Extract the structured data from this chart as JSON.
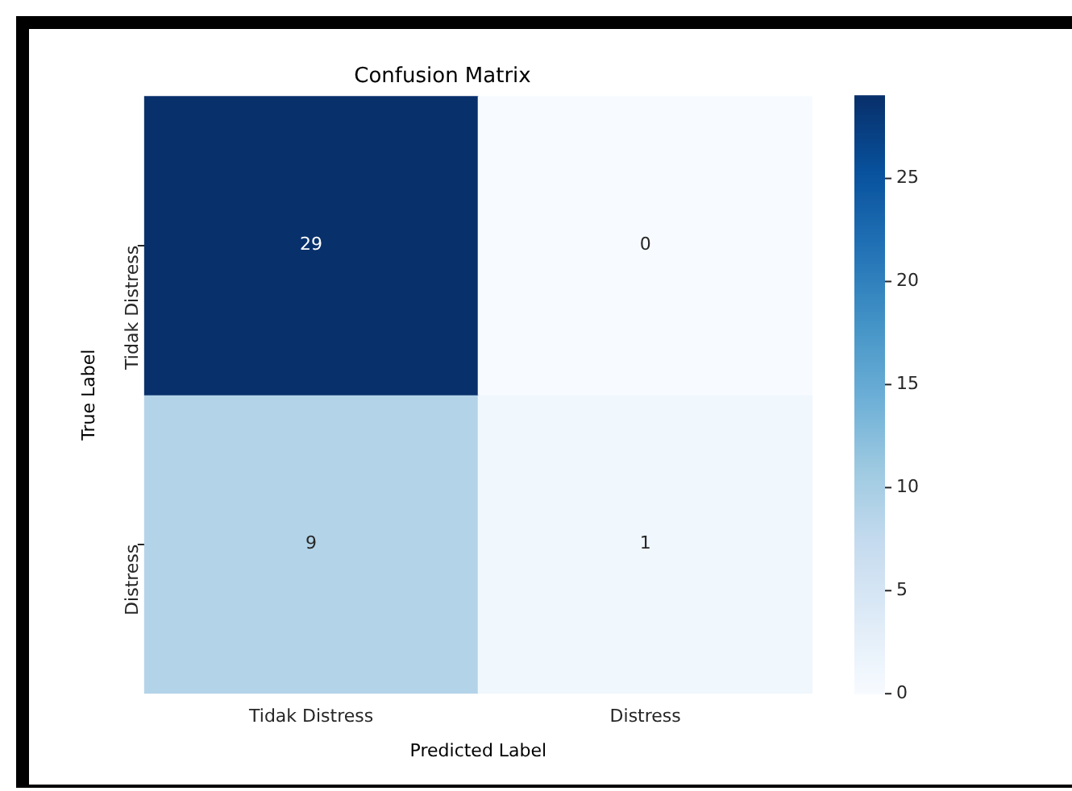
{
  "chart_data": {
    "type": "heatmap",
    "title": "Confusion Matrix",
    "xlabel": "Predicted Label",
    "ylabel": "True Label",
    "categories": [
      "Tidak Distress",
      "Distress"
    ],
    "y_categories": [
      "Tidak Distress",
      "Distress"
    ],
    "cells": [
      [
        29,
        0
      ],
      [
        9,
        1
      ]
    ],
    "clim": [
      0,
      29
    ],
    "cticks": [
      0,
      5,
      10,
      15,
      20,
      25
    ],
    "data_labels": true
  }
}
